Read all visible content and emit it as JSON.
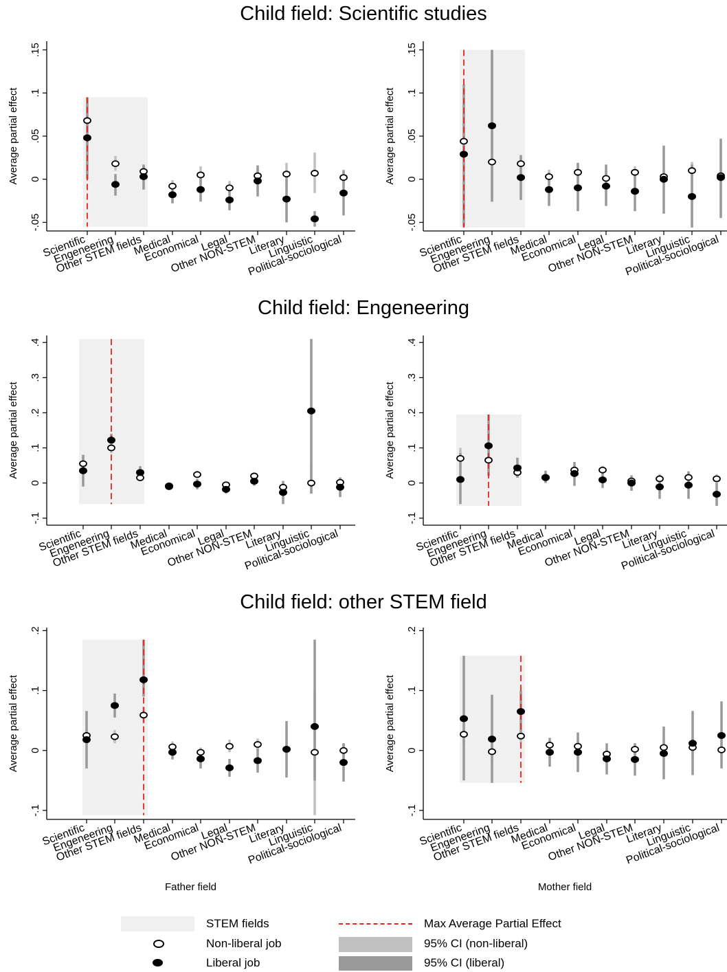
{
  "row_titles": [
    "Child field: Scientific studies",
    "Child field: Engeneering",
    "Child field: other STEM field"
  ],
  "bottom_xlabels": [
    "Father field",
    "Mother field"
  ],
  "legend": {
    "stem": "STEM fields",
    "nonliberal": "Non-liberal job",
    "liberal": "Liberal job",
    "max": "Max Average Partial Effect",
    "ci_nonliberal": "95% CI (non-liberal)",
    "ci_liberal": "95% CI (liberal)"
  },
  "colors": {
    "stem_shade": "#f0f0f0",
    "ci_nonliberal": "#c0c0c0",
    "ci_liberal": "#999999",
    "max_line": "#e8231e"
  },
  "chart_data": [
    {
      "type": "scatter",
      "title": "",
      "xlabel": "",
      "ylabel": "Average partial effect",
      "categories": [
        "Scientific",
        "Engeneering",
        "Other STEM fields",
        "Medical",
        "Economical",
        "Legal",
        "Other NON-STEM",
        "Literary",
        "Linguistic",
        "Political-sociological"
      ],
      "ylim": [
        -0.06,
        0.16
      ],
      "yticks": [
        -0.05,
        0,
        0.05,
        0.1,
        0.15
      ],
      "ytick_labels": [
        "-.05",
        "0",
        ".05",
        ".1",
        ".15"
      ],
      "stem_band": {
        "from": 0,
        "to": 2,
        "ymin": -0.055,
        "ymax": 0.095
      },
      "max_line": {
        "category": 0,
        "ymin": -0.055,
        "ymax": 0.095
      },
      "series": [
        {
          "name": "Non-liberal job",
          "values": [
            0.068,
            0.018,
            0.009,
            -0.008,
            0.005,
            -0.01,
            0.004,
            0.006,
            0.007,
            0.002
          ],
          "lo": [
            0.04,
            0.01,
            0.002,
            -0.015,
            -0.005,
            -0.018,
            -0.005,
            -0.008,
            -0.016,
            -0.007
          ],
          "hi": [
            0.095,
            0.027,
            0.016,
            -0.001,
            0.015,
            -0.002,
            0.013,
            0.019,
            0.031,
            0.011
          ]
        },
        {
          "name": "Liberal job",
          "values": [
            0.048,
            -0.006,
            0.003,
            -0.018,
            -0.012,
            -0.024,
            -0.002,
            -0.023,
            -0.046,
            -0.016
          ],
          "lo": [
            0.0,
            -0.019,
            -0.012,
            -0.028,
            -0.026,
            -0.036,
            -0.02,
            -0.05,
            -0.055,
            -0.042
          ],
          "hi": [
            0.095,
            0.006,
            0.017,
            -0.008,
            0.002,
            -0.012,
            0.016,
            0.005,
            -0.037,
            0.01
          ]
        }
      ]
    },
    {
      "type": "scatter",
      "title": "",
      "xlabel": "",
      "ylabel": "Average partial effect",
      "categories": [
        "Scientific",
        "Engeneering",
        "Other STEM fields",
        "Medical",
        "Economical",
        "Legal",
        "Other NON-STEM",
        "Literary",
        "Linguistic",
        "Political-sociological"
      ],
      "ylim": [
        -0.06,
        0.16
      ],
      "yticks": [
        -0.05,
        0,
        0.05,
        0.1,
        0.15
      ],
      "ytick_labels": [
        "-.05",
        "0",
        ".05",
        ".1",
        ".15"
      ],
      "stem_band": {
        "from": 0,
        "to": 2,
        "ymin": -0.056,
        "ymax": 0.15
      },
      "max_line": {
        "category": 0,
        "ymin": -0.056,
        "ymax": 0.15
      },
      "series": [
        {
          "name": "Non-liberal job",
          "values": [
            0.044,
            0.02,
            0.018,
            0.003,
            0.008,
            0.001,
            0.008,
            0.003,
            0.01,
            0.004
          ],
          "lo": [
            0.03,
            -0.026,
            0.012,
            -0.005,
            0.0,
            -0.008,
            0.001,
            -0.005,
            0.0,
            -0.005
          ],
          "hi": [
            0.06,
            0.15,
            0.025,
            0.011,
            0.016,
            0.01,
            0.015,
            0.011,
            0.02,
            0.013
          ]
        },
        {
          "name": "Liberal job",
          "values": [
            0.029,
            0.062,
            0.002,
            -0.012,
            -0.01,
            -0.008,
            -0.014,
            0.0,
            -0.02,
            0.002
          ],
          "lo": [
            -0.055,
            -0.026,
            -0.024,
            -0.031,
            -0.037,
            -0.031,
            -0.037,
            -0.04,
            -0.056,
            -0.045
          ],
          "hi": [
            0.11,
            0.15,
            0.028,
            0.008,
            0.019,
            0.017,
            0.01,
            0.039,
            0.017,
            0.047
          ]
        }
      ]
    },
    {
      "type": "scatter",
      "title": "",
      "xlabel": "",
      "ylabel": "Average partial effect",
      "categories": [
        "Scientific",
        "Engeneering",
        "Other STEM fields",
        "Medical",
        "Economical",
        "Legal",
        "Other NON-STEM",
        "Literary",
        "Linguistic",
        "Political-sociological"
      ],
      "ylim": [
        -0.12,
        0.42
      ],
      "yticks": [
        -0.1,
        0,
        0.1,
        0.2,
        0.3,
        0.4
      ],
      "ytick_labels": [
        "-.1",
        "0",
        ".1",
        ".2",
        ".3",
        ".4"
      ],
      "stem_band": {
        "from": 0,
        "to": 2,
        "ymin": -0.06,
        "ymax": 0.41
      },
      "max_line": {
        "category": 1,
        "ymin": -0.06,
        "ymax": 0.41
      },
      "series": [
        {
          "name": "Non-liberal job",
          "values": [
            0.055,
            0.1,
            0.015,
            -0.008,
            0.024,
            -0.005,
            0.02,
            -0.012,
            0.0,
            0.002
          ],
          "lo": [
            0.03,
            0.085,
            0.005,
            -0.014,
            0.015,
            -0.013,
            0.01,
            -0.024,
            -0.03,
            -0.01
          ],
          "hi": [
            0.08,
            0.118,
            0.025,
            -0.002,
            0.035,
            0.003,
            0.03,
            0.0,
            0.05,
            0.015
          ]
        },
        {
          "name": "Liberal job",
          "values": [
            0.035,
            0.122,
            0.03,
            -0.01,
            -0.003,
            -0.018,
            0.005,
            -0.027,
            0.205,
            -0.012
          ],
          "lo": [
            -0.01,
            0.105,
            0.012,
            -0.02,
            -0.018,
            -0.03,
            -0.008,
            -0.06,
            -0.03,
            -0.04
          ],
          "hi": [
            0.08,
            0.14,
            0.048,
            0.0,
            0.012,
            -0.006,
            0.018,
            0.006,
            0.41,
            0.016
          ]
        }
      ]
    },
    {
      "type": "scatter",
      "title": "",
      "xlabel": "",
      "ylabel": "Average partial effect",
      "categories": [
        "Scientific",
        "Engeneering",
        "Other STEM fields",
        "Medical",
        "Economical",
        "Legal",
        "Other NON-STEM",
        "Literary",
        "Linguistic",
        "Political-sociological"
      ],
      "ylim": [
        -0.12,
        0.42
      ],
      "yticks": [
        -0.1,
        0,
        0.1,
        0.2,
        0.3,
        0.4
      ],
      "ytick_labels": [
        "-.1",
        "0",
        ".1",
        ".2",
        ".3",
        ".4"
      ],
      "stem_band": {
        "from": 0,
        "to": 2,
        "ymin": -0.065,
        "ymax": 0.195
      },
      "max_line": {
        "category": 1,
        "ymin": -0.065,
        "ymax": 0.195
      },
      "series": [
        {
          "name": "Non-liberal job",
          "values": [
            0.07,
            0.065,
            0.03,
            0.015,
            0.037,
            0.037,
            0.006,
            0.012,
            0.016,
            0.012
          ],
          "lo": [
            0.04,
            0.04,
            0.015,
            0.005,
            0.022,
            0.025,
            -0.005,
            0.0,
            0.0,
            0.0
          ],
          "hi": [
            0.1,
            0.09,
            0.045,
            0.025,
            0.052,
            0.049,
            0.017,
            0.025,
            0.033,
            0.025
          ]
        },
        {
          "name": "Liberal job",
          "values": [
            0.01,
            0.106,
            0.043,
            0.016,
            0.027,
            0.009,
            0.0,
            -0.011,
            -0.006,
            -0.032
          ],
          "lo": [
            -0.06,
            0.02,
            0.015,
            0.0,
            -0.008,
            -0.014,
            -0.022,
            -0.045,
            -0.045,
            -0.065
          ],
          "hi": [
            0.085,
            0.195,
            0.072,
            0.035,
            0.06,
            0.032,
            0.022,
            0.023,
            0.033,
            0.0
          ]
        }
      ]
    },
    {
      "type": "scatter",
      "title": "",
      "xlabel": "Father field",
      "ylabel": "Average partial effect",
      "categories": [
        "Scientific",
        "Engeneering",
        "Other STEM fields",
        "Medical",
        "Economical",
        "Legal",
        "Other NON-STEM",
        "Literary",
        "Linguistic",
        "Political-sociological"
      ],
      "ylim": [
        -0.115,
        0.205
      ],
      "yticks": [
        -0.1,
        0,
        0.1,
        0.2
      ],
      "ytick_labels": [
        "-.1",
        "0",
        ".1",
        ".2"
      ],
      "stem_band": {
        "from": 0,
        "to": 2,
        "ymin": -0.108,
        "ymax": 0.185
      },
      "max_line": {
        "category": 2,
        "ymin": -0.108,
        "ymax": 0.185
      },
      "series": [
        {
          "name": "Non-liberal job",
          "values": [
            0.025,
            0.023,
            0.059,
            0.006,
            -0.003,
            0.007,
            0.01,
            0.002,
            -0.003,
            0.0
          ],
          "lo": [
            0.012,
            0.012,
            0.045,
            -0.003,
            -0.011,
            -0.003,
            0.0,
            -0.01,
            -0.108,
            -0.012
          ],
          "hi": [
            0.038,
            0.034,
            0.073,
            0.015,
            0.005,
            0.018,
            0.02,
            0.015,
            0.1,
            0.012
          ]
        },
        {
          "name": "Liberal job",
          "values": [
            0.018,
            0.075,
            0.118,
            -0.003,
            -0.014,
            -0.029,
            -0.017,
            0.002,
            0.04,
            -0.02
          ],
          "lo": [
            -0.03,
            0.055,
            0.09,
            -0.015,
            -0.03,
            -0.044,
            -0.037,
            -0.045,
            -0.05,
            -0.052
          ],
          "hi": [
            0.066,
            0.095,
            0.185,
            0.009,
            0.002,
            -0.014,
            0.003,
            0.049,
            0.185,
            0.012
          ]
        }
      ]
    },
    {
      "type": "scatter",
      "title": "",
      "xlabel": "Mother field",
      "ylabel": "Average partial effect",
      "categories": [
        "Scientific",
        "Engeneering",
        "Other STEM fields",
        "Medical",
        "Economical",
        "Legal",
        "Other NON-STEM",
        "Literary",
        "Linguistic",
        "Political-sociological"
      ],
      "ylim": [
        -0.115,
        0.205
      ],
      "yticks": [
        -0.1,
        0,
        0.1,
        0.2
      ],
      "ytick_labels": [
        "-.1",
        "0",
        ".1",
        ".2"
      ],
      "stem_band": {
        "from": 0,
        "to": 2,
        "ymin": -0.054,
        "ymax": 0.158
      },
      "max_line": {
        "category": 2,
        "ymin": -0.054,
        "ymax": 0.158
      },
      "series": [
        {
          "name": "Non-liberal job",
          "values": [
            0.027,
            -0.002,
            0.024,
            0.009,
            0.007,
            -0.006,
            0.002,
            0.005,
            0.005,
            0.001
          ],
          "lo": [
            0.01,
            -0.02,
            0.012,
            -0.003,
            -0.005,
            -0.015,
            -0.008,
            -0.01,
            -0.01,
            -0.01
          ],
          "hi": [
            0.045,
            0.015,
            0.036,
            0.021,
            0.019,
            0.003,
            0.012,
            0.02,
            0.02,
            0.012
          ]
        },
        {
          "name": "Liberal job",
          "values": [
            0.053,
            0.019,
            0.065,
            -0.003,
            -0.003,
            -0.014,
            -0.015,
            -0.005,
            0.012,
            0.025
          ],
          "lo": [
            -0.05,
            -0.054,
            0.03,
            -0.027,
            -0.036,
            -0.04,
            -0.042,
            -0.048,
            -0.041,
            -0.03
          ],
          "hi": [
            0.158,
            0.093,
            0.1,
            0.021,
            0.03,
            0.012,
            0.012,
            0.04,
            0.066,
            0.082
          ]
        }
      ]
    }
  ]
}
